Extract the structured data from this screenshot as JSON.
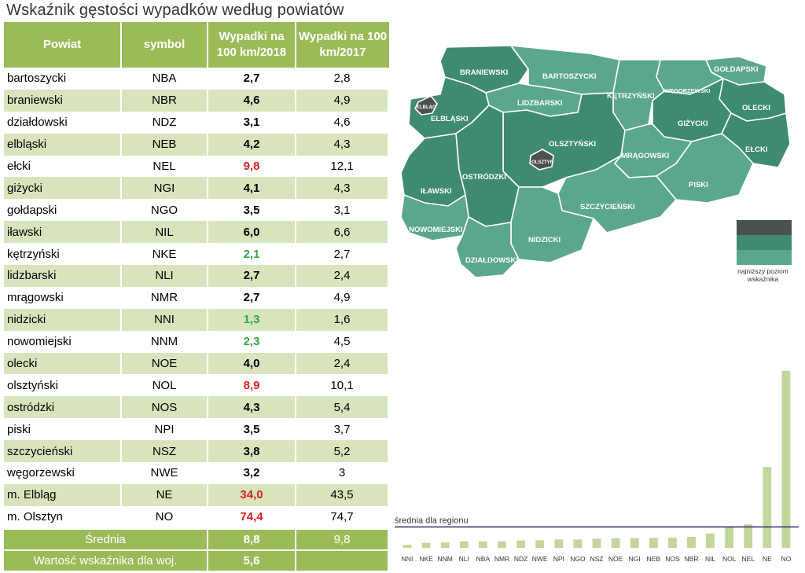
{
  "title": "Wskaźnik gęstości wypadków według powiatów",
  "table": {
    "headers": [
      "Powiat",
      "symbol",
      "Wypadki na 100 km/2018",
      "Wypadki na 100 km/2017"
    ],
    "rows": [
      {
        "name": "bartoszycki",
        "symbol": "NBA",
        "v2018": "2,7",
        "v2017": "2,8",
        "hl": ""
      },
      {
        "name": "braniewski",
        "symbol": "NBR",
        "v2018": "4,6",
        "v2017": "4,9",
        "hl": ""
      },
      {
        "name": "działdowski",
        "symbol": "NDZ",
        "v2018": "3,1",
        "v2017": "4,6",
        "hl": ""
      },
      {
        "name": "elbląski",
        "symbol": "NEB",
        "v2018": "4,2",
        "v2017": "4,3",
        "hl": ""
      },
      {
        "name": "ełcki",
        "symbol": "NEL",
        "v2018": "9,8",
        "v2017": "12,1",
        "hl": "red"
      },
      {
        "name": "giżycki",
        "symbol": "NGI",
        "v2018": "4,1",
        "v2017": "4,3",
        "hl": ""
      },
      {
        "name": "gołdapski",
        "symbol": "NGO",
        "v2018": "3,5",
        "v2017": "3,1",
        "hl": ""
      },
      {
        "name": "iławski",
        "symbol": "NIL",
        "v2018": "6,0",
        "v2017": "6,6",
        "hl": ""
      },
      {
        "name": "kętrzyński",
        "symbol": "NKE",
        "v2018": "2,1",
        "v2017": "2,7",
        "hl": "green"
      },
      {
        "name": "lidzbarski",
        "symbol": "NLI",
        "v2018": "2,7",
        "v2017": "2,4",
        "hl": ""
      },
      {
        "name": "mrągowski",
        "symbol": "NMR",
        "v2018": "2,7",
        "v2017": "4,9",
        "hl": ""
      },
      {
        "name": "nidzicki",
        "symbol": "NNI",
        "v2018": "1,3",
        "v2017": "1,6",
        "hl": "green"
      },
      {
        "name": "nowomiejski",
        "symbol": "NNM",
        "v2018": "2,3",
        "v2017": "4,5",
        "hl": "green"
      },
      {
        "name": "olecki",
        "symbol": "NOE",
        "v2018": "4,0",
        "v2017": "2,4",
        "hl": ""
      },
      {
        "name": "olsztyński",
        "symbol": "NOL",
        "v2018": "8,9",
        "v2017": "10,1",
        "hl": "red"
      },
      {
        "name": "ostródzki",
        "symbol": "NOS",
        "v2018": "4,3",
        "v2017": "5,4",
        "hl": ""
      },
      {
        "name": "piski",
        "symbol": "NPI",
        "v2018": "3,5",
        "v2017": "3,7",
        "hl": ""
      },
      {
        "name": "szczycieński",
        "symbol": "NSZ",
        "v2018": "3,8",
        "v2017": "5,2",
        "hl": ""
      },
      {
        "name": "węgorzewski",
        "symbol": "NWE",
        "v2018": "3,2",
        "v2017": "3",
        "hl": ""
      },
      {
        "name": "m. Elbląg",
        "symbol": "NE",
        "v2018": "34,0",
        "v2017": "43,5",
        "hl": "red"
      },
      {
        "name": "m. Olsztyn",
        "symbol": "NO",
        "v2018": "74,4",
        "v2017": "74,7",
        "hl": "red"
      }
    ],
    "average": {
      "label": "Średnia",
      "v2018": "8,8",
      "v2017": "9,8"
    },
    "voivodeship": {
      "label": "Wartość wskaźnika dla woj.",
      "v2018": "5,6"
    }
  },
  "map": {
    "colors": {
      "dark": "#4b5050",
      "mid": "#3f8a72",
      "light": "#5aa68e"
    },
    "labels": {
      "BRANIEWSKI": "BRANIEWSKI",
      "BARTOSZYCKI": "BARTOSZYCKI",
      "GOLDAPSKI": "GOŁDAPSKI",
      "WEGORZEWSKI": "WĘGORZEWSKI",
      "KETRZYNSKI": "KĘTRZYŃSKI",
      "LIDZBARSKI": "LIDZBARSKI",
      "ELBLAG": "ELBLĄG",
      "ELBLASKI": "ELBLĄSKI",
      "OLECKI": "OLECKI",
      "GIZYCKI": "GIŻYCKI",
      "OLSZTYNSKI": "OLSZTYŃSKI",
      "OLSZTYN": "OLSZTYN",
      "MRAGOWSKI": "MRĄGOWSKI",
      "ELCKI": "EŁCKI",
      "OSTRODZKI": "OSTRÓDZKI",
      "ILAWSKI": "IŁAWSKI",
      "PISKI": "PISKI",
      "SZCZYCIENSKI": "SZCZYCIEŃSKI",
      "NOWOMIEJSKI": "NOWOMIEJSKI",
      "NIDZICKI": "NIDZICKI",
      "DZIALDOWSKI": "DZIAŁDOWSKI"
    },
    "legend": {
      "colors": [
        "#4b5050",
        "#3f8a72",
        "#5aa68e"
      ],
      "label": "najniższy poziom wskaźnika"
    }
  },
  "chart_data": {
    "type": "bar",
    "categories": [
      "NNI",
      "NKE",
      "NNM",
      "NLI",
      "NBA",
      "NMR",
      "NDZ",
      "NWE",
      "NPI",
      "NGO",
      "NSZ",
      "NOE",
      "NGI",
      "NEB",
      "NOS",
      "NBR",
      "NIL",
      "NOL",
      "NEL",
      "NE",
      "NO"
    ],
    "values": [
      1.3,
      2.1,
      2.3,
      2.7,
      2.7,
      2.7,
      3.1,
      3.2,
      3.5,
      3.5,
      3.8,
      4.0,
      4.1,
      4.2,
      4.3,
      4.6,
      6.0,
      8.9,
      9.8,
      34.0,
      74.4
    ],
    "reference_line": {
      "label": "średnia dla regionu",
      "value": 8.8
    },
    "ylim": [
      0,
      76
    ],
    "bar_color": "#c3d69b",
    "line_color": "#2e2e6e"
  }
}
